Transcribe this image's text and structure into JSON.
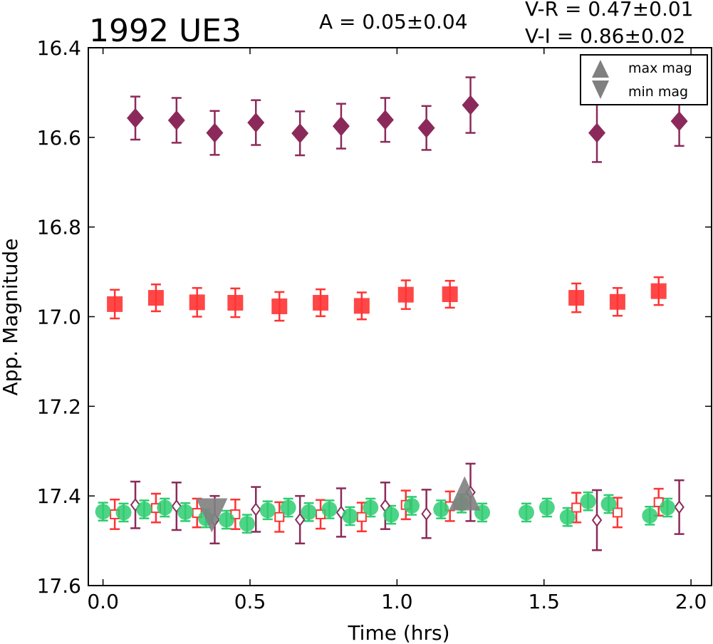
{
  "chart_data": {
    "type": "scatter",
    "title": "1992 UE3",
    "annotations": {
      "amplitude": "A  = 0.05±0.04",
      "vr": "V-R = 0.47±0.01",
      "vi": "V-I  = 0.86±0.02"
    },
    "xlabel": "Time (hrs)",
    "ylabel": "App. Magnitude",
    "xlim": [
      -0.05,
      2.07
    ],
    "ylim": [
      17.6,
      16.4
    ],
    "y_inverted": true,
    "xticks": [
      "0.0",
      "0.5",
      "1.0",
      "1.5",
      "2.0"
    ],
    "yticks": [
      "16.4",
      "16.6",
      "16.8",
      "17.0",
      "17.2",
      "17.4",
      "17.6"
    ],
    "grid": false,
    "legend": {
      "position": "top-right",
      "entries": [
        {
          "label": "max mag",
          "marker": "triangle-up",
          "color": "#808080"
        },
        {
          "label": "min mag",
          "marker": "triangle-down",
          "color": "#808080"
        }
      ]
    },
    "colors": {
      "green": "#2ecc71",
      "red": "#ff3333",
      "purple": "#8b2a5a",
      "gray": "#808080"
    },
    "series": [
      {
        "marker": "diamond-filled",
        "color": "#8b2a5a",
        "points": [
          [
            0.11,
            16.557,
            0.048
          ],
          [
            0.25,
            16.562,
            0.05
          ],
          [
            0.38,
            16.59,
            0.049
          ],
          [
            0.52,
            16.567,
            0.05
          ],
          [
            0.67,
            16.591,
            0.049
          ],
          [
            0.81,
            16.575,
            0.05
          ],
          [
            0.96,
            16.561,
            0.049
          ],
          [
            1.1,
            16.579,
            0.049
          ],
          [
            1.25,
            16.528,
            0.062
          ],
          [
            1.68,
            16.59,
            0.065
          ],
          [
            1.96,
            16.564,
            0.055
          ]
        ]
      },
      {
        "marker": "square-filled",
        "color": "#ff3333",
        "points": [
          [
            0.04,
            16.972,
            0.032
          ],
          [
            0.18,
            16.958,
            0.03
          ],
          [
            0.32,
            16.968,
            0.032
          ],
          [
            0.45,
            16.969,
            0.032
          ],
          [
            0.6,
            16.977,
            0.032
          ],
          [
            0.74,
            16.969,
            0.03
          ],
          [
            0.88,
            16.976,
            0.03
          ],
          [
            1.03,
            16.951,
            0.032
          ],
          [
            1.18,
            16.95,
            0.03
          ],
          [
            1.61,
            16.958,
            0.032
          ],
          [
            1.75,
            16.967,
            0.031
          ],
          [
            1.89,
            16.943,
            0.031
          ]
        ]
      },
      {
        "marker": "circle-filled",
        "color": "#2ecc71",
        "points": [
          [
            0.0,
            17.435,
            0.02
          ],
          [
            0.07,
            17.437,
            0.02
          ],
          [
            0.14,
            17.43,
            0.02
          ],
          [
            0.21,
            17.426,
            0.02
          ],
          [
            0.28,
            17.436,
            0.02
          ],
          [
            0.35,
            17.45,
            0.02
          ],
          [
            0.42,
            17.453,
            0.02
          ],
          [
            0.49,
            17.462,
            0.02
          ],
          [
            0.56,
            17.432,
            0.02
          ],
          [
            0.63,
            17.426,
            0.02
          ],
          [
            0.7,
            17.436,
            0.02
          ],
          [
            0.77,
            17.43,
            0.02
          ],
          [
            0.84,
            17.445,
            0.02
          ],
          [
            0.91,
            17.426,
            0.02
          ],
          [
            0.98,
            17.442,
            0.02
          ],
          [
            1.05,
            17.422,
            0.02
          ],
          [
            1.15,
            17.43,
            0.02
          ],
          [
            1.22,
            17.417,
            0.02
          ],
          [
            1.29,
            17.437,
            0.02
          ],
          [
            1.44,
            17.437,
            0.02
          ],
          [
            1.51,
            17.426,
            0.02
          ],
          [
            1.58,
            17.447,
            0.02
          ],
          [
            1.65,
            17.412,
            0.02
          ],
          [
            1.72,
            17.418,
            0.02
          ],
          [
            1.86,
            17.444,
            0.02
          ],
          [
            1.92,
            17.426,
            0.02
          ]
        ]
      },
      {
        "marker": "square-open",
        "color": "#ff3333",
        "points": [
          [
            0.04,
            17.441,
            0.033
          ],
          [
            0.18,
            17.427,
            0.032
          ],
          [
            0.32,
            17.438,
            0.032
          ],
          [
            0.45,
            17.441,
            0.033
          ],
          [
            0.6,
            17.447,
            0.033
          ],
          [
            0.74,
            17.441,
            0.032
          ],
          [
            0.88,
            17.447,
            0.032
          ],
          [
            1.03,
            17.42,
            0.032
          ],
          [
            1.18,
            17.423,
            0.033
          ],
          [
            1.61,
            17.426,
            0.033
          ],
          [
            1.75,
            17.437,
            0.033
          ],
          [
            1.89,
            17.414,
            0.03
          ]
        ]
      },
      {
        "marker": "diamond-open",
        "color": "#8b2a5a",
        "points": [
          [
            0.11,
            17.42,
            0.052
          ],
          [
            0.25,
            17.423,
            0.053
          ],
          [
            0.38,
            17.453,
            0.053
          ],
          [
            0.52,
            17.43,
            0.05
          ],
          [
            0.67,
            17.453,
            0.053
          ],
          [
            0.81,
            17.437,
            0.054
          ],
          [
            0.96,
            17.422,
            0.052
          ],
          [
            1.1,
            17.44,
            0.054
          ],
          [
            1.25,
            17.392,
            0.064
          ],
          [
            1.68,
            17.454,
            0.067
          ],
          [
            1.96,
            17.425,
            0.06
          ]
        ]
      }
    ],
    "markers": [
      {
        "label": "max mag",
        "type": "triangle-up",
        "x": 1.23,
        "y": 17.41,
        "color": "#808080"
      },
      {
        "label": "min mag",
        "type": "triangle-down",
        "x": 0.37,
        "y": 17.453,
        "color": "#808080"
      }
    ]
  }
}
